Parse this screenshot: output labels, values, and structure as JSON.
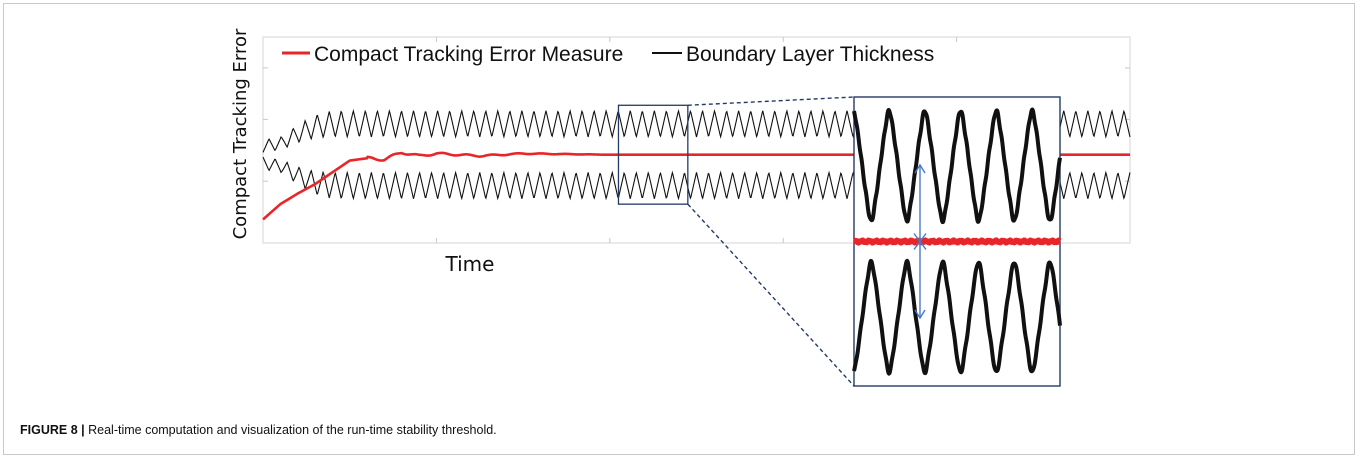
{
  "figure": {
    "label": "FIGURE 8 |",
    "caption": "Real-time computation and visualization of the run-time stability threshold."
  },
  "chart_data": {
    "type": "line",
    "title": "",
    "xlabel": "Time",
    "ylabel": "Compact Tracking Error",
    "x_ticks_labeled": false,
    "y_ticks_labeled": false,
    "grid": false,
    "legend_position": "top-left",
    "colors": {
      "tracking_error": "#e8262a",
      "boundary_layer": "#111111",
      "zoom_box": "#243a66",
      "arrow": "#4a78c8"
    },
    "x": [
      0,
      2,
      4,
      6,
      8,
      10,
      12,
      14,
      16,
      18,
      20,
      25,
      30,
      40,
      50,
      60,
      70,
      80,
      90,
      100
    ],
    "series": [
      {
        "name": "Compact Tracking Error Measure",
        "values": [
          -0.55,
          -0.42,
          -0.33,
          -0.25,
          -0.15,
          -0.05,
          -0.03,
          -0.04,
          0.02,
          -0.01,
          0.01,
          -0.01,
          0.01,
          0.0,
          0.0,
          0.0,
          0.0,
          0.0,
          0.0,
          0.0
        ]
      },
      {
        "name": "Boundary Layer Thickness",
        "oscillation_cycles": 72,
        "amplitude_envelope": [
          0.12,
          0.14,
          0.25,
          0.34,
          0.38,
          0.38,
          0.38,
          0.38,
          0.38,
          0.38,
          0.38,
          0.38,
          0.38,
          0.38,
          0.38,
          0.38,
          0.38,
          0.38,
          0.38,
          0.38
        ],
        "offset_envelope": [
          0.0,
          0.02,
          0.08,
          0.12,
          0.13,
          0.13,
          0.13,
          0.13,
          0.13,
          0.13,
          0.13,
          0.13,
          0.13,
          0.13,
          0.13,
          0.13,
          0.13,
          0.13,
          0.13,
          0.13
        ]
      }
    ],
    "ylim": [
      -0.75,
      1.0
    ],
    "xlim": [
      0,
      100
    ],
    "zoom_window": {
      "x_range": [
        41,
        49
      ],
      "y_range": [
        -0.42,
        0.42
      ]
    }
  }
}
